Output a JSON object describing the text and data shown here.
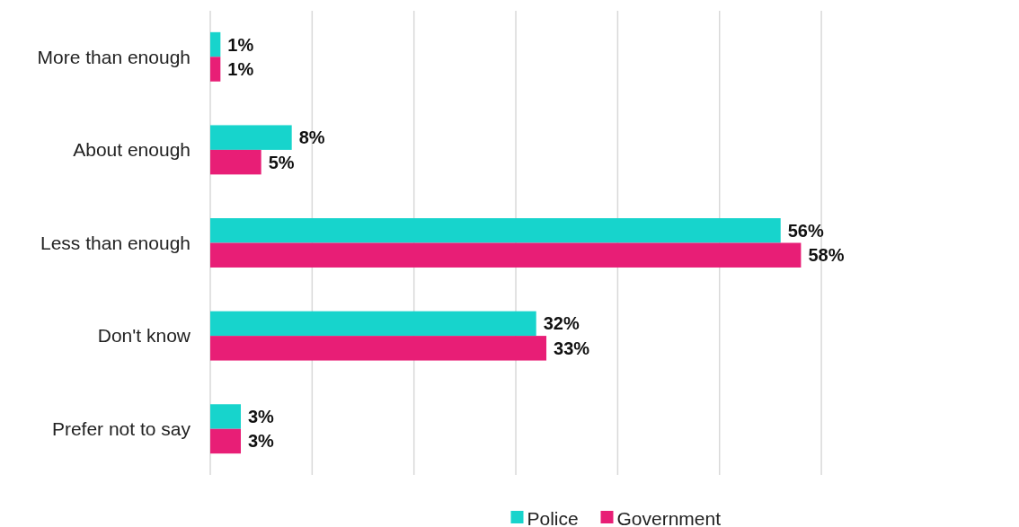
{
  "chart_data": {
    "type": "bar",
    "orientation": "horizontal",
    "categories": [
      "More than enough",
      "About enough",
      "Less than enough",
      "Don't know",
      "Prefer not to say"
    ],
    "series": [
      {
        "name": "Police",
        "color": "#17d4cc",
        "values": [
          1,
          8,
          56,
          32,
          3
        ],
        "value_labels": [
          "1%",
          "8%",
          "56%",
          "32%",
          "3%"
        ]
      },
      {
        "name": "Government",
        "color": "#e81e76",
        "values": [
          1,
          5,
          58,
          33,
          3
        ],
        "value_labels": [
          "1%",
          "5%",
          "58%",
          "33%",
          "3%"
        ]
      }
    ],
    "grid": "x",
    "legend": "bottom",
    "tick_labels": "y"
  }
}
